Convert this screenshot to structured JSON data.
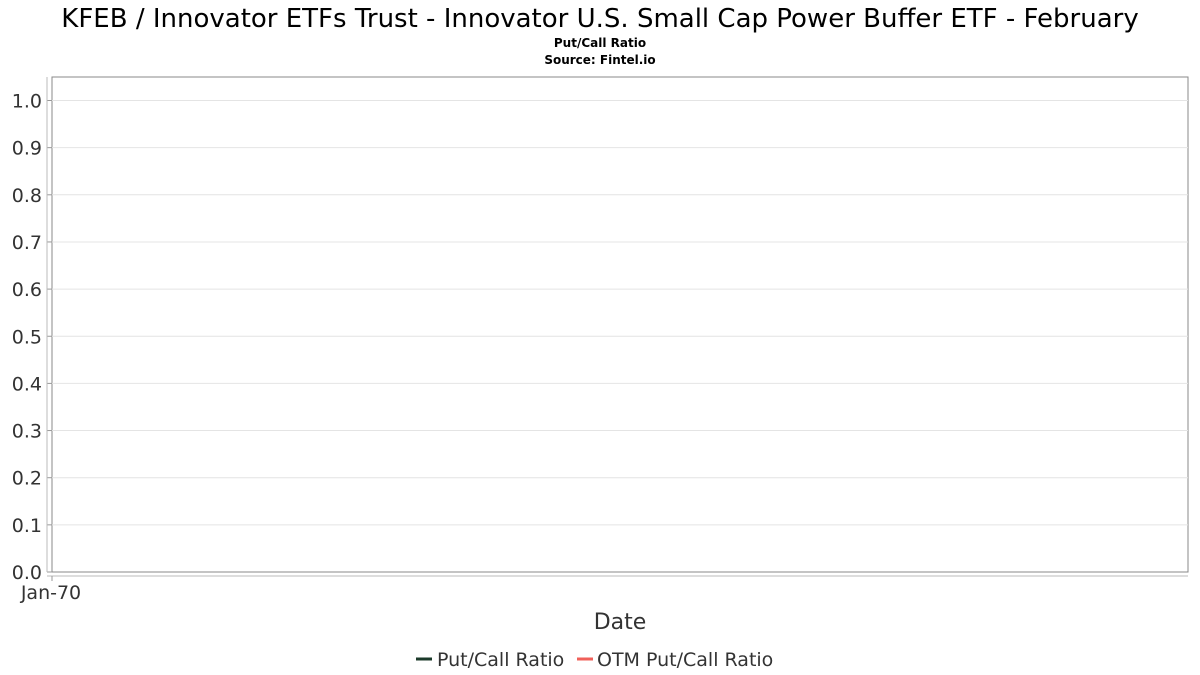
{
  "chart_data": {
    "type": "line",
    "title": "KFEB / Innovator ETFs Trust - Innovator U.S. Small Cap Power Buffer ETF - February",
    "subtitle": "Put/Call Ratio",
    "source": "Source: Fintel.io",
    "xlabel": "Date",
    "ylabel": "",
    "x_ticks": [
      "Jan-70"
    ],
    "y_ticks": [
      "0.0",
      "0.1",
      "0.2",
      "0.3",
      "0.4",
      "0.5",
      "0.6",
      "0.7",
      "0.8",
      "0.9",
      "1.0"
    ],
    "ylim": [
      0,
      1.05
    ],
    "grid": true,
    "legend_position": "bottom",
    "series": [
      {
        "name": "Put/Call Ratio",
        "color": "#1b3a2a",
        "x": [],
        "values": []
      },
      {
        "name": "OTM Put/Call Ratio",
        "color": "#f0605a",
        "x": [],
        "values": []
      }
    ]
  }
}
